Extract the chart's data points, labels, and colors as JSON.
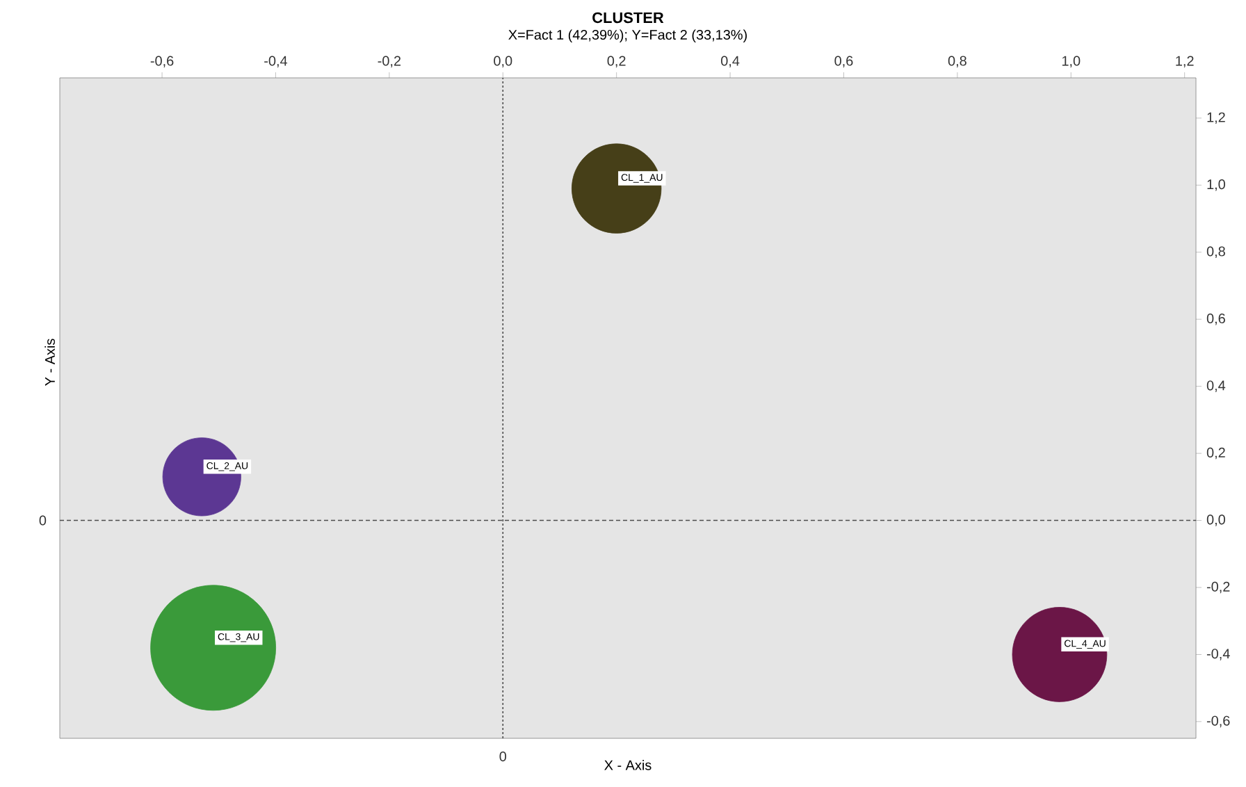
{
  "chart_data": {
    "type": "bubble",
    "title": "CLUSTER",
    "subtitle": "X=Fact 1 (42,39%); Y=Fact  2 (33,13%)",
    "xlabel": "X - Axis",
    "ylabel": "Y - Axis",
    "series": [
      {
        "name": "CL_1_AU",
        "color": "#463f18",
        "x": [
          0.2
        ],
        "values": [
          0.99
        ],
        "sizes": [
          0.51
        ]
      },
      {
        "name": "CL_2_AU",
        "color": "#5c3793",
        "x": [
          -0.53
        ],
        "values": [
          0.13
        ],
        "sizes": [
          0.39
        ]
      },
      {
        "name": "CL_3_AU",
        "color": "#3a9a3a",
        "x": [
          -0.51
        ],
        "values": [
          -0.38
        ],
        "sizes": [
          1
        ]
      },
      {
        "name": "CL_4_AU",
        "color": "#6b1647",
        "x": [
          0.98
        ],
        "values": [
          -0.4
        ],
        "sizes": [
          0.57
        ]
      }
    ],
    "grid": false,
    "annotations": [
      "0",
      "0"
    ],
    "xlim": [
      -0.78,
      1.22
    ],
    "xticks": [
      {
        "value": -0.6,
        "label": "-0,6"
      },
      {
        "value": -0.4,
        "label": "-0,4"
      },
      {
        "value": -0.2,
        "label": "-0,2"
      },
      {
        "value": 0,
        "label": "0,0"
      },
      {
        "value": 0.2,
        "label": "0,2"
      },
      {
        "value": 0.4,
        "label": "0,4"
      },
      {
        "value": 0.6,
        "label": "0,6"
      },
      {
        "value": 0.8,
        "label": "0,8"
      },
      {
        "value": 1.0,
        "label": "1,0"
      },
      {
        "value": 1.2,
        "label": "1,2"
      }
    ],
    "ylim": [
      -0.65,
      1.32
    ],
    "yticks": [
      {
        "value": 1.2,
        "label": "1,2"
      },
      {
        "value": 1.0,
        "label": "1,0"
      },
      {
        "value": 0.8,
        "label": "0,8"
      },
      {
        "value": 0.6,
        "label": "0,6"
      },
      {
        "value": 0.4,
        "label": "0,4"
      },
      {
        "value": 0.2,
        "label": "0,2"
      },
      {
        "value": 0,
        "label": "0,0"
      },
      {
        "value": -0.2,
        "label": "-0,2"
      },
      {
        "value": -0.4,
        "label": "-0,4"
      },
      {
        "value": -0.6,
        "label": "-0,6"
      }
    ],
    "ref_lines": [
      {
        "axis": "x",
        "value": 0,
        "line_style": "dotted"
      },
      {
        "axis": "y",
        "value": 0,
        "line_style": "dashed"
      }
    ]
  }
}
